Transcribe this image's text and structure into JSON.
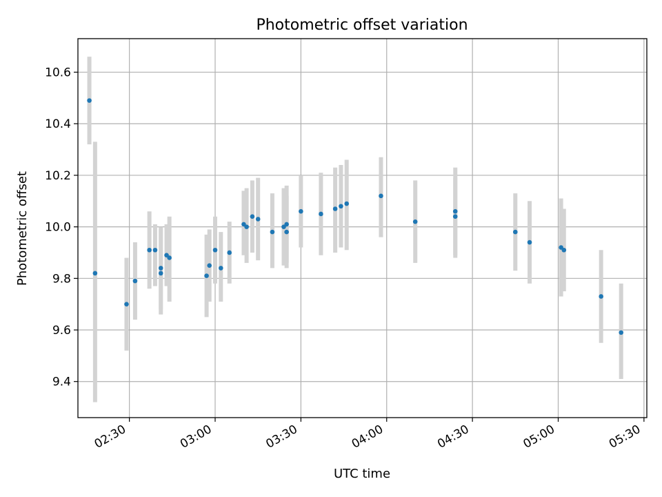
{
  "chart_data": {
    "type": "scatter",
    "title": "Photometric offset variation",
    "xlabel": "UTC time",
    "ylabel": "Photometric offset",
    "x_is_time": true,
    "xlim": [
      "02:12",
      "05:31"
    ],
    "ylim": [
      9.26,
      10.73
    ],
    "x_ticks": [
      "02:30",
      "03:00",
      "03:30",
      "04:00",
      "04:30",
      "05:00",
      "05:30"
    ],
    "y_ticks": [
      9.4,
      9.6,
      9.8,
      10.0,
      10.2,
      10.4,
      10.6
    ],
    "y_tick_labels": [
      "9.4",
      "9.6",
      "9.8",
      "10.0",
      "10.2",
      "10.4",
      "10.6"
    ],
    "grid": true,
    "colors": {
      "point": "#1f77b4",
      "errorbar": "#d3d3d3",
      "grid": "#b0b0b0"
    },
    "series": [
      {
        "points": [
          {
            "x": "02:16",
            "y": 10.49,
            "lo": 10.32,
            "hi": 10.66
          },
          {
            "x": "02:18",
            "y": 9.82,
            "lo": 9.32,
            "hi": 10.33
          },
          {
            "x": "02:29",
            "y": 9.7,
            "lo": 9.52,
            "hi": 9.88
          },
          {
            "x": "02:32",
            "y": 9.79,
            "lo": 9.64,
            "hi": 9.94
          },
          {
            "x": "02:37",
            "y": 9.91,
            "lo": 9.76,
            "hi": 10.06
          },
          {
            "x": "02:39",
            "y": 9.91,
            "lo": 9.77,
            "hi": 10.01
          },
          {
            "x": "02:41",
            "y": 9.82,
            "lo": 9.66,
            "hi": 9.99
          },
          {
            "x": "02:41",
            "y": 9.84,
            "lo": 9.68,
            "hi": 10.0
          },
          {
            "x": "02:43",
            "y": 9.89,
            "lo": 9.77,
            "hi": 10.01
          },
          {
            "x": "02:44",
            "y": 9.88,
            "lo": 9.71,
            "hi": 10.04
          },
          {
            "x": "02:57",
            "y": 9.81,
            "lo": 9.65,
            "hi": 9.97
          },
          {
            "x": "02:58",
            "y": 9.85,
            "lo": 9.71,
            "hi": 9.99
          },
          {
            "x": "03:00",
            "y": 9.91,
            "lo": 9.78,
            "hi": 10.04
          },
          {
            "x": "03:02",
            "y": 9.84,
            "lo": 9.71,
            "hi": 9.98
          },
          {
            "x": "03:05",
            "y": 9.9,
            "lo": 9.78,
            "hi": 10.02
          },
          {
            "x": "03:10",
            "y": 10.01,
            "lo": 9.89,
            "hi": 10.14
          },
          {
            "x": "03:11",
            "y": 10.0,
            "lo": 9.86,
            "hi": 10.15
          },
          {
            "x": "03:13",
            "y": 10.04,
            "lo": 9.9,
            "hi": 10.18
          },
          {
            "x": "03:15",
            "y": 10.03,
            "lo": 9.87,
            "hi": 10.19
          },
          {
            "x": "03:20",
            "y": 9.98,
            "lo": 9.84,
            "hi": 10.13
          },
          {
            "x": "03:24",
            "y": 10.0,
            "lo": 9.85,
            "hi": 10.15
          },
          {
            "x": "03:25",
            "y": 10.01,
            "lo": 9.86,
            "hi": 10.16
          },
          {
            "x": "03:25",
            "y": 9.98,
            "lo": 9.84,
            "hi": 10.12
          },
          {
            "x": "03:30",
            "y": 10.06,
            "lo": 9.92,
            "hi": 10.2
          },
          {
            "x": "03:37",
            "y": 10.05,
            "lo": 9.89,
            "hi": 10.21
          },
          {
            "x": "03:42",
            "y": 10.07,
            "lo": 9.9,
            "hi": 10.23
          },
          {
            "x": "03:44",
            "y": 10.08,
            "lo": 9.92,
            "hi": 10.24
          },
          {
            "x": "03:46",
            "y": 10.09,
            "lo": 9.91,
            "hi": 10.26
          },
          {
            "x": "03:58",
            "y": 10.12,
            "lo": 9.96,
            "hi": 10.27
          },
          {
            "x": "04:10",
            "y": 10.02,
            "lo": 9.86,
            "hi": 10.18
          },
          {
            "x": "04:24",
            "y": 10.06,
            "lo": 9.89,
            "hi": 10.23
          },
          {
            "x": "04:24",
            "y": 10.04,
            "lo": 9.88,
            "hi": 10.19
          },
          {
            "x": "04:45",
            "y": 9.98,
            "lo": 9.83,
            "hi": 10.13
          },
          {
            "x": "04:50",
            "y": 9.94,
            "lo": 9.78,
            "hi": 10.1
          },
          {
            "x": "05:01",
            "y": 9.92,
            "lo": 9.73,
            "hi": 10.11
          },
          {
            "x": "05:02",
            "y": 9.91,
            "lo": 9.75,
            "hi": 10.07
          },
          {
            "x": "05:15",
            "y": 9.73,
            "lo": 9.55,
            "hi": 9.91
          },
          {
            "x": "05:22",
            "y": 9.59,
            "lo": 9.41,
            "hi": 9.78
          }
        ]
      }
    ]
  }
}
